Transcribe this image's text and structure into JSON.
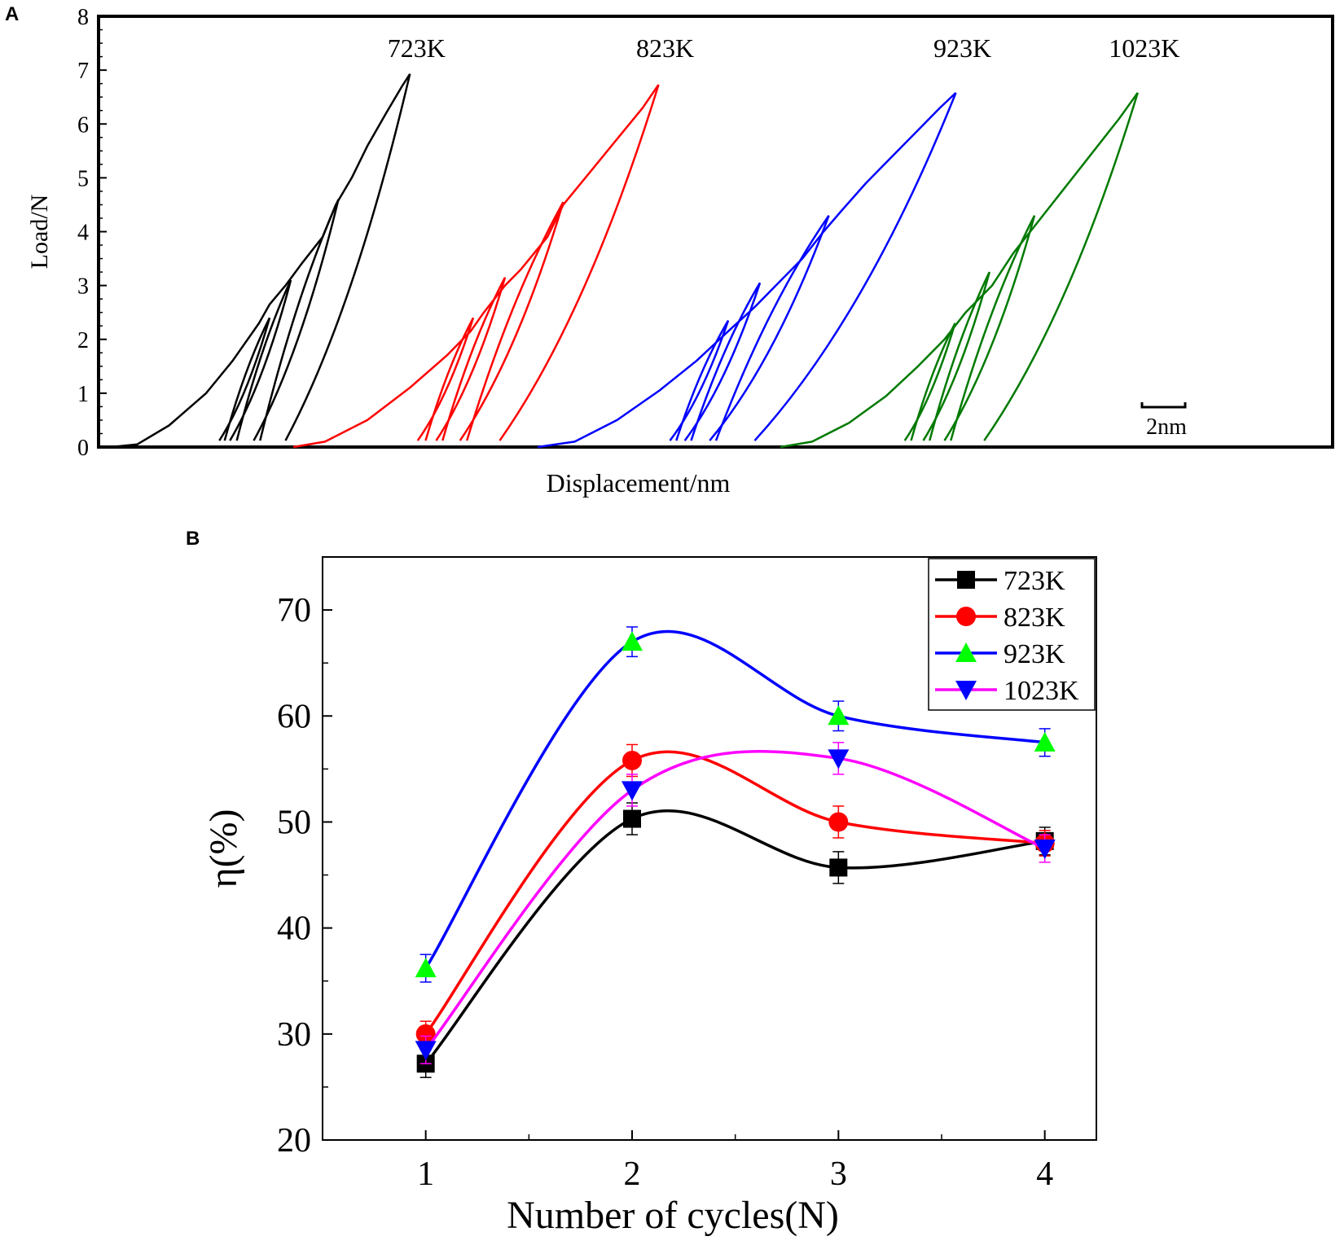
{
  "panels": {
    "a_label": "A",
    "b_label": "B"
  },
  "chart_data": [
    {
      "panel": "A",
      "type": "line",
      "title": "",
      "xlabel": "Displacement/nm",
      "ylabel": "Load/N",
      "ylim": [
        0,
        8
      ],
      "yticks": [
        "0",
        "1",
        "2",
        "3",
        "4",
        "5",
        "6",
        "7",
        "8"
      ],
      "scale_bar_label": "2nm",
      "grid": false,
      "series": [
        {
          "name": "723K",
          "color": "#000000",
          "loading": [
            [
              0.0,
              0.0
            ],
            [
              0.5,
              0.05
            ],
            [
              1.1,
              0.4
            ],
            [
              1.8,
              1.0
            ],
            [
              2.3,
              1.6
            ],
            [
              2.8,
              2.3
            ],
            [
              3.0,
              2.65
            ],
            [
              3.3,
              3.0
            ],
            [
              3.6,
              3.4
            ],
            [
              4.0,
              3.9
            ],
            [
              4.25,
              4.5
            ],
            [
              4.55,
              5.0
            ],
            [
              4.85,
              5.6
            ],
            [
              5.2,
              6.2
            ],
            [
              5.5,
              6.7
            ],
            [
              5.65,
              6.93
            ]
          ],
          "cycles": [
            {
              "peak": [
                3.0,
                2.4
              ],
              "unload": [
                2.05,
                0.12
              ],
              "reload": [
                2.15,
                0.12
              ]
            },
            {
              "peak": [
                3.4,
                3.1
              ],
              "unload": [
                2.25,
                0.12
              ],
              "reload": [
                2.38,
                0.12
              ]
            },
            {
              "peak": [
                4.3,
                4.6
              ],
              "unload": [
                2.7,
                0.12
              ],
              "reload": [
                2.82,
                0.12
              ]
            },
            {
              "peak": [
                5.65,
                6.93
              ],
              "unload": [
                3.3,
                0.12
              ],
              "reload": null
            }
          ]
        },
        {
          "name": "823K",
          "color": "#ff0000",
          "loading": [
            [
              0.0,
              0.0
            ],
            [
              0.6,
              0.1
            ],
            [
              1.4,
              0.5
            ],
            [
              2.2,
              1.1
            ],
            [
              2.9,
              1.7
            ],
            [
              3.35,
              2.15
            ],
            [
              3.6,
              2.5
            ],
            [
              4.0,
              3.0
            ],
            [
              4.3,
              3.3
            ],
            [
              4.8,
              3.9
            ],
            [
              5.1,
              4.5
            ],
            [
              5.6,
              5.1
            ],
            [
              6.1,
              5.7
            ],
            [
              6.6,
              6.3
            ],
            [
              6.9,
              6.73
            ]
          ],
          "cycles": [
            {
              "peak": [
                3.4,
                2.4
              ],
              "unload": [
                2.35,
                0.12
              ],
              "reload": [
                2.5,
                0.12
              ]
            },
            {
              "peak": [
                4.0,
                3.15
              ],
              "unload": [
                2.7,
                0.12
              ],
              "reload": [
                2.82,
                0.12
              ]
            },
            {
              "peak": [
                5.1,
                4.55
              ],
              "unload": [
                3.15,
                0.12
              ],
              "reload": [
                3.28,
                0.12
              ]
            },
            {
              "peak": [
                6.9,
                6.73
              ],
              "unload": [
                3.9,
                0.12
              ],
              "reload": null
            }
          ]
        },
        {
          "name": "923K",
          "color": "#0000ff",
          "loading": [
            [
              0.0,
              0.0
            ],
            [
              0.7,
              0.1
            ],
            [
              1.5,
              0.5
            ],
            [
              2.3,
              1.05
            ],
            [
              3.0,
              1.6
            ],
            [
              3.6,
              2.15
            ],
            [
              4.1,
              2.6
            ],
            [
              4.55,
              3.05
            ],
            [
              5.0,
              3.5
            ],
            [
              5.4,
              4.0
            ],
            [
              5.75,
              4.4
            ],
            [
              6.2,
              4.9
            ],
            [
              6.7,
              5.4
            ],
            [
              7.2,
              5.9
            ],
            [
              7.6,
              6.3
            ],
            [
              7.9,
              6.58
            ]
          ],
          "cycles": [
            {
              "peak": [
                3.6,
                2.35
              ],
              "unload": [
                2.5,
                0.12
              ],
              "reload": [
                2.62,
                0.12
              ]
            },
            {
              "peak": [
                4.2,
                3.05
              ],
              "unload": [
                2.78,
                0.12
              ],
              "reload": [
                2.9,
                0.12
              ]
            },
            {
              "peak": [
                5.5,
                4.3
              ],
              "unload": [
                3.25,
                0.12
              ],
              "reload": [
                3.37,
                0.12
              ]
            },
            {
              "peak": [
                7.9,
                6.58
              ],
              "unload": [
                4.1,
                0.12
              ],
              "reload": null
            }
          ]
        },
        {
          "name": "1023K",
          "color": "#007a00",
          "loading": [
            [
              0.0,
              0.0
            ],
            [
              0.6,
              0.1
            ],
            [
              1.3,
              0.45
            ],
            [
              2.0,
              0.95
            ],
            [
              2.6,
              1.5
            ],
            [
              3.1,
              2.0
            ],
            [
              3.5,
              2.5
            ],
            [
              4.0,
              3.0
            ],
            [
              4.4,
              3.6
            ],
            [
              4.8,
              4.1
            ],
            [
              5.2,
              4.6
            ],
            [
              5.6,
              5.1
            ],
            [
              6.0,
              5.6
            ],
            [
              6.4,
              6.1
            ],
            [
              6.75,
              6.58
            ]
          ],
          "cycles": [
            {
              "peak": [
                3.3,
                2.3
              ],
              "unload": [
                2.35,
                0.12
              ],
              "reload": [
                2.47,
                0.12
              ]
            },
            {
              "peak": [
                3.95,
                3.25
              ],
              "unload": [
                2.7,
                0.12
              ],
              "reload": [
                2.82,
                0.12
              ]
            },
            {
              "peak": [
                4.8,
                4.3
              ],
              "unload": [
                3.1,
                0.12
              ],
              "reload": [
                3.22,
                0.12
              ]
            },
            {
              "peak": [
                6.75,
                6.58
              ],
              "unload": [
                3.85,
                0.12
              ],
              "reload": null
            }
          ]
        }
      ]
    },
    {
      "panel": "B",
      "type": "line",
      "title": "",
      "xlabel": "Number of cycles(N)",
      "ylabel": "η(%)",
      "x": [
        1,
        2,
        3,
        4
      ],
      "xticks": [
        "1",
        "2",
        "3",
        "4"
      ],
      "yticks": [
        "20",
        "30",
        "40",
        "50",
        "60",
        "70"
      ],
      "xlim": [
        0.5,
        4.25
      ],
      "ylim": [
        20,
        75
      ],
      "legend_position": "top-right",
      "grid": false,
      "series": [
        {
          "name": "723K",
          "line_color": "#000000",
          "marker_color": "#000000",
          "marker": "square",
          "values": [
            27.2,
            50.3,
            45.7,
            48.2
          ],
          "errors": [
            1.3,
            1.5,
            1.5,
            1.3
          ]
        },
        {
          "name": "823K",
          "line_color": "#ff0000",
          "marker_color": "#ff0000",
          "marker": "circle",
          "values": [
            30.0,
            55.8,
            50.0,
            48.0
          ],
          "errors": [
            1.2,
            1.5,
            1.5,
            1.2
          ]
        },
        {
          "name": "923K",
          "line_color": "#0000ff",
          "marker_color": "#00ff00",
          "marker": "triangle-up",
          "values": [
            36.2,
            67.0,
            60.0,
            57.5
          ],
          "errors": [
            1.3,
            1.4,
            1.4,
            1.3
          ]
        },
        {
          "name": "1023K",
          "line_color": "#ff00ff",
          "marker_color": "#0000ff",
          "marker": "triangle-down",
          "values": [
            28.5,
            53.0,
            56.0,
            47.5
          ],
          "errors": [
            1.3,
            1.5,
            1.5,
            1.3
          ]
        }
      ]
    }
  ]
}
